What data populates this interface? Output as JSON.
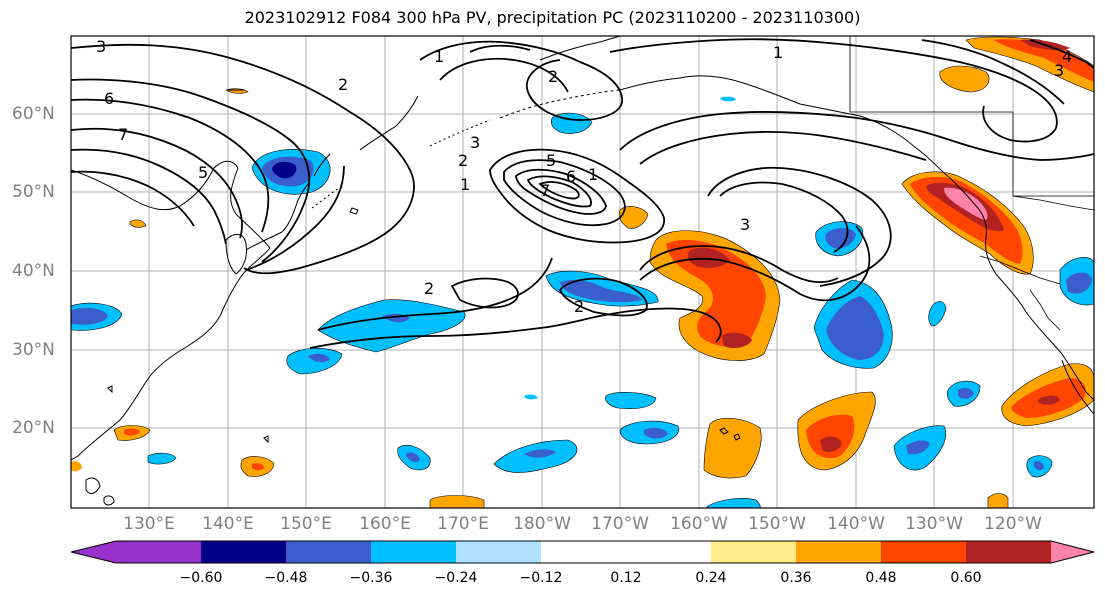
{
  "title": "2023102912 F084 300 hPa PV, precipitation PC (2023110200 - 2023110300)",
  "latitude_labels": [
    "60°N",
    "50°N",
    "40°N",
    "30°N",
    "20°N"
  ],
  "longitude_labels": [
    "130°E",
    "140°E",
    "150°E",
    "160°E",
    "170°E",
    "180°W",
    "170°W",
    "160°W",
    "150°W",
    "140°W",
    "130°W",
    "120°W"
  ],
  "colorbar": {
    "ticks": [
      "−0.60",
      "−0.48",
      "−0.36",
      "−0.24",
      "−0.12",
      "0.12",
      "0.24",
      "0.36",
      "0.48",
      "0.60"
    ],
    "colors": [
      "#9932cc",
      "#00008b",
      "#3a5fcd",
      "#00bfff",
      "#b0e2ff",
      "#ffffff",
      "#ffec8b",
      "#ffa500",
      "#ff4500",
      "#b22222",
      "#ff82ab"
    ]
  },
  "contour_labels": [
    "3",
    "6",
    "7",
    "5",
    "1",
    "2",
    "1",
    "3",
    "2",
    "1",
    "5",
    "6",
    "7",
    "1",
    "3",
    "2",
    "2",
    "2",
    "4",
    "3"
  ],
  "colors": {
    "negative_dark": "#3a5fcd",
    "negative_mid": "#00bfff",
    "positive_orange": "#ffa500",
    "positive_red": "#ff4500",
    "positive_darkred": "#b22222",
    "positive_pink": "#ff82ab"
  }
}
